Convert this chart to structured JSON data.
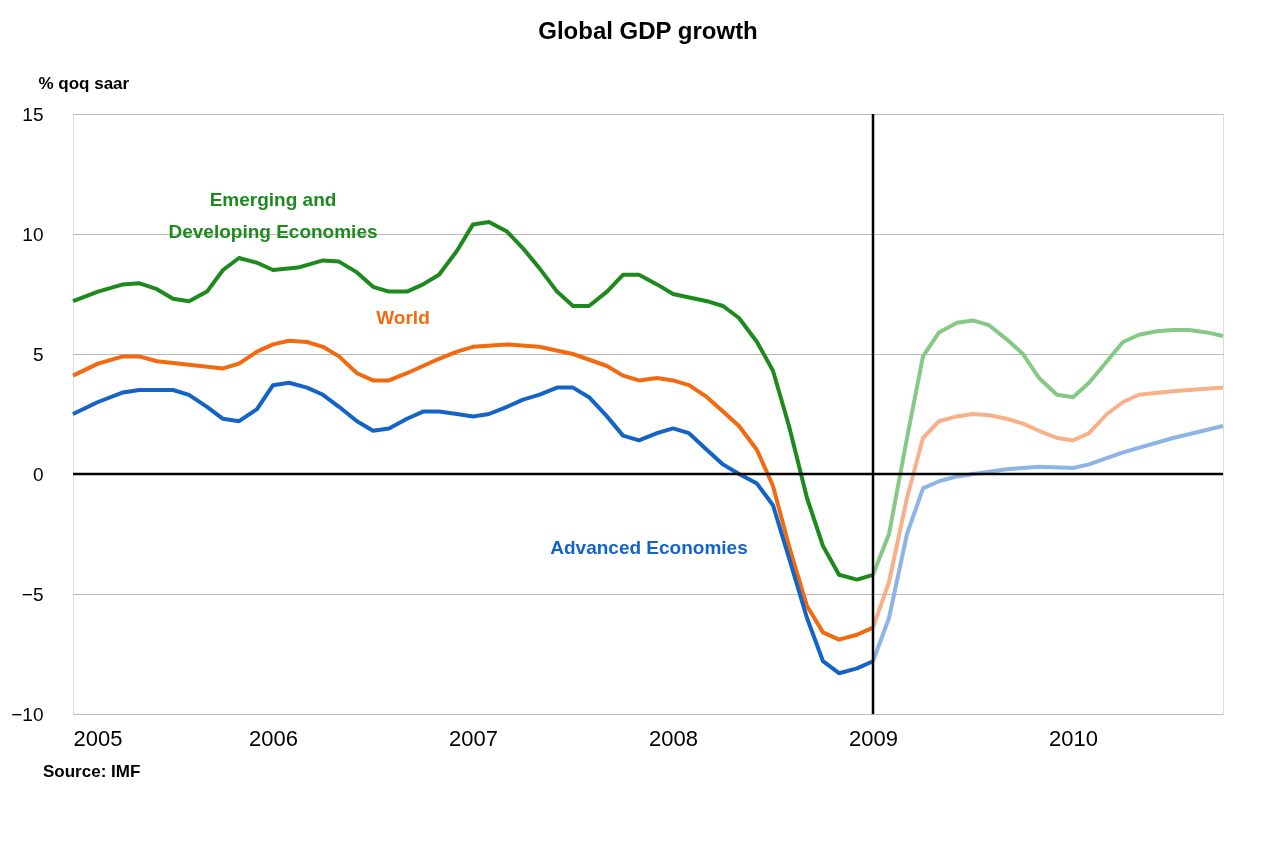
{
  "chart_data": {
    "type": "line",
    "title": "Global GDP growth",
    "ylabel": "% qoq saar",
    "xlim": [
      2005,
      2010.75
    ],
    "xticks": [
      2005,
      2006,
      2007,
      2008,
      2009,
      2010
    ],
    "ylim": [
      -10,
      15
    ],
    "yticks": [
      -10,
      -5,
      0,
      5,
      10,
      15
    ],
    "grid": "y",
    "legend": false,
    "line_style": "solid",
    "series": [
      {
        "name": "Emerging and Developing Economies",
        "color": "#1e8a1e",
        "x": [
          2005.0,
          2005.125,
          2005.25,
          2005.33,
          2005.42,
          2005.5,
          2005.58,
          2005.67,
          2005.75,
          2005.83,
          2005.92,
          2006.0,
          2006.125,
          2006.25,
          2006.33,
          2006.42,
          2006.5,
          2006.58,
          2006.67,
          2006.75,
          2006.83,
          2006.92,
          2007.0,
          2007.08,
          2007.17,
          2007.25,
          2007.33,
          2007.42,
          2007.5,
          2007.58,
          2007.67,
          2007.75,
          2007.83,
          2007.92,
          2008.0,
          2008.17,
          2008.25,
          2008.33,
          2008.42,
          2008.5,
          2008.58,
          2008.67,
          2008.75,
          2008.83,
          2008.92,
          2009.0
        ],
        "values": [
          7.2,
          7.6,
          7.9,
          7.95,
          7.7,
          7.3,
          7.2,
          7.6,
          8.5,
          9.0,
          8.8,
          8.5,
          8.6,
          8.9,
          8.85,
          8.4,
          7.8,
          7.6,
          7.6,
          7.9,
          8.3,
          9.3,
          10.4,
          10.5,
          10.1,
          9.4,
          8.6,
          7.6,
          7.0,
          7.0,
          7.6,
          8.3,
          8.3,
          7.9,
          7.5,
          7.2,
          7.0,
          6.5,
          5.5,
          4.3,
          2.0,
          -1.0,
          -3.0,
          -4.2,
          -4.4,
          -4.2
        ]
      },
      {
        "color": "#86c886",
        "x": [
          2009.0,
          2009.08,
          2009.17,
          2009.25,
          2009.33,
          2009.42,
          2009.5,
          2009.58,
          2009.67,
          2009.75,
          2009.83,
          2009.92,
          2010.0,
          2010.08,
          2010.17,
          2010.25,
          2010.33,
          2010.42,
          2010.5,
          2010.58,
          2010.67,
          2010.75
        ],
        "values": [
          -4.2,
          -2.5,
          1.5,
          4.9,
          5.9,
          6.3,
          6.4,
          6.2,
          5.6,
          5.0,
          4.0,
          3.3,
          3.2,
          3.8,
          4.7,
          5.5,
          5.8,
          5.95,
          6.0,
          6.0,
          5.9,
          5.75
        ]
      },
      {
        "name": "World",
        "color": "#f26a0f",
        "x": [
          2005.0,
          2005.125,
          2005.25,
          2005.33,
          2005.42,
          2005.58,
          2005.75,
          2005.83,
          2005.92,
          2006.0,
          2006.08,
          2006.17,
          2006.25,
          2006.33,
          2006.42,
          2006.5,
          2006.58,
          2006.67,
          2006.75,
          2006.83,
          2006.92,
          2007.0,
          2007.17,
          2007.33,
          2007.5,
          2007.67,
          2007.75,
          2007.83,
          2007.92,
          2008.0,
          2008.08,
          2008.17,
          2008.25,
          2008.33,
          2008.42,
          2008.5,
          2008.58,
          2008.67,
          2008.75,
          2008.83,
          2008.92,
          2009.0
        ],
        "values": [
          4.1,
          4.6,
          4.9,
          4.9,
          4.7,
          4.55,
          4.4,
          4.6,
          5.1,
          5.4,
          5.55,
          5.5,
          5.3,
          4.9,
          4.2,
          3.9,
          3.9,
          4.2,
          4.5,
          4.8,
          5.1,
          5.3,
          5.4,
          5.3,
          5.0,
          4.5,
          4.1,
          3.9,
          4.0,
          3.9,
          3.7,
          3.2,
          2.6,
          2.0,
          1.0,
          -0.5,
          -3.0,
          -5.5,
          -6.6,
          -6.9,
          -6.7,
          -6.4
        ]
      },
      {
        "color": "#f9b089",
        "x": [
          2009.0,
          2009.08,
          2009.17,
          2009.25,
          2009.33,
          2009.42,
          2009.5,
          2009.58,
          2009.67,
          2009.75,
          2009.83,
          2009.92,
          2010.0,
          2010.08,
          2010.17,
          2010.25,
          2010.33,
          2010.5,
          2010.75
        ],
        "values": [
          -6.4,
          -4.5,
          -1.0,
          1.5,
          2.2,
          2.4,
          2.5,
          2.45,
          2.3,
          2.1,
          1.8,
          1.5,
          1.4,
          1.7,
          2.5,
          3.0,
          3.3,
          3.45,
          3.6
        ]
      },
      {
        "name": "Advanced Economies",
        "color": "#1464c8",
        "x": [
          2005.0,
          2005.125,
          2005.25,
          2005.33,
          2005.5,
          2005.58,
          2005.67,
          2005.75,
          2005.83,
          2005.92,
          2006.0,
          2006.08,
          2006.17,
          2006.25,
          2006.33,
          2006.42,
          2006.5,
          2006.58,
          2006.67,
          2006.75,
          2006.83,
          2006.92,
          2007.0,
          2007.08,
          2007.17,
          2007.25,
          2007.33,
          2007.42,
          2007.5,
          2007.58,
          2007.67,
          2007.75,
          2007.83,
          2007.92,
          2008.0,
          2008.08,
          2008.17,
          2008.25,
          2008.33,
          2008.42,
          2008.5,
          2008.58,
          2008.67,
          2008.75,
          2008.83,
          2008.92,
          2009.0
        ],
        "values": [
          2.5,
          3.0,
          3.4,
          3.5,
          3.5,
          3.3,
          2.8,
          2.3,
          2.2,
          2.7,
          3.7,
          3.8,
          3.6,
          3.3,
          2.8,
          2.2,
          1.8,
          1.9,
          2.3,
          2.6,
          2.6,
          2.5,
          2.4,
          2.5,
          2.8,
          3.1,
          3.3,
          3.6,
          3.6,
          3.2,
          2.4,
          1.6,
          1.4,
          1.7,
          1.9,
          1.7,
          1.0,
          0.4,
          0.0,
          -0.4,
          -1.3,
          -3.5,
          -6.0,
          -7.8,
          -8.3,
          -8.1,
          -7.8
        ]
      },
      {
        "color": "#8cb4e6",
        "x": [
          2009.0,
          2009.08,
          2009.17,
          2009.25,
          2009.33,
          2009.42,
          2009.5,
          2009.67,
          2009.83,
          2010.0,
          2010.08,
          2010.25,
          2010.5,
          2010.75
        ],
        "values": [
          -7.8,
          -6.0,
          -2.5,
          -0.6,
          -0.3,
          -0.1,
          0.0,
          0.2,
          0.3,
          0.25,
          0.4,
          0.9,
          1.5,
          2.0
        ]
      }
    ],
    "ref_lines": [
      {
        "axis": "x",
        "value": 2009,
        "color": "#000000"
      }
    ],
    "annotations": [
      "Source: IMF"
    ]
  }
}
